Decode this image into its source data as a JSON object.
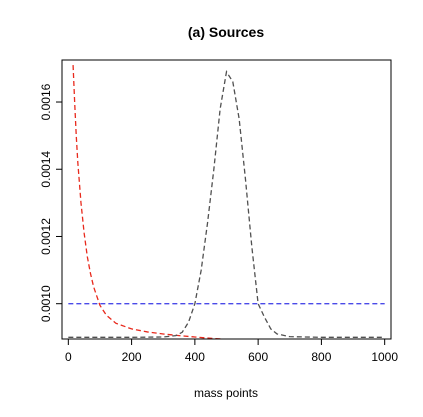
{
  "chart_data": {
    "type": "line",
    "title": "(a)  Sources",
    "xlabel": "mass points",
    "ylabel": "",
    "xlim": [
      -20,
      1020
    ],
    "ylim": [
      0.000895,
      0.001725
    ],
    "xticks": [
      0,
      200,
      400,
      600,
      800,
      1000
    ],
    "xtick_labels": [
      "0",
      "200",
      "400",
      "600",
      "800",
      "1000"
    ],
    "yticks": [
      0.001,
      0.0012,
      0.0014,
      0.0016
    ],
    "ytick_labels": [
      "0.0010",
      "0.0012",
      "0.0014",
      "0.0016"
    ],
    "grid": false,
    "legend": "none",
    "series": [
      {
        "line_style": "dashed",
        "color": "#e8291c",
        "x": [
          15,
          20,
          25,
          30,
          40,
          50,
          60,
          70,
          80,
          100,
          120,
          150,
          200,
          250,
          300,
          350,
          400,
          450,
          500,
          600,
          700,
          800,
          900,
          1000
        ],
        "y": [
          0.00171,
          0.0016,
          0.0015,
          0.00142,
          0.0013,
          0.00121,
          0.00114,
          0.00109,
          0.00105,
          0.000995,
          0.000966,
          0.000942,
          0.000925,
          0.000916,
          0.00091,
          0.000905,
          0.000901,
          0.000897,
          0.000894,
          0.000889,
          0.000885,
          0.000882,
          0.000879,
          0.000877
        ]
      },
      {
        "line_style": "dashed",
        "color": "#4a4ae8",
        "x": [
          0,
          1000
        ],
        "y": [
          0.001,
          0.001
        ]
      },
      {
        "line_style": "dashed",
        "color": "#505050",
        "x": [
          0,
          200,
          300,
          340,
          360,
          380,
          400,
          420,
          440,
          460,
          480,
          500,
          520,
          540,
          560,
          580,
          600,
          620,
          640,
          660,
          700,
          800,
          900,
          1000
        ],
        "y": [
          0.0009,
          0.0009,
          0.000901,
          0.000905,
          0.000915,
          0.000945,
          0.001,
          0.0011,
          0.00124,
          0.0014,
          0.00158,
          0.00169,
          0.00166,
          0.00155,
          0.00137,
          0.00117,
          0.001,
          0.00096,
          0.000925,
          0.00091,
          0.000902,
          0.0009,
          0.0009,
          0.0009
        ]
      }
    ]
  }
}
